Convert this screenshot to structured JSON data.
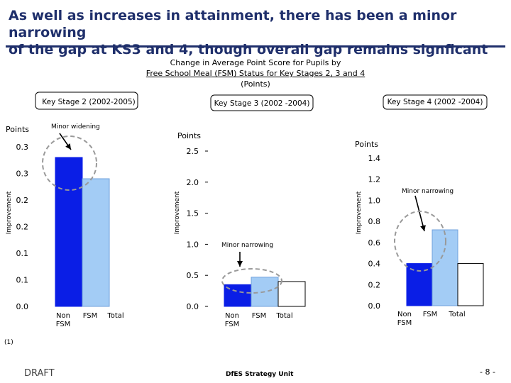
{
  "slide": {
    "title_line1": "As well as increases in attainment, there has been a minor narrowing",
    "title_line2": "of the gap at KS3 and 4, though overall gap remains signficant",
    "subtitle_line1": "Change in Average Point Score for Pupils by",
    "subtitle_line2": "Free School Meal (FSM) Status for Key Stages 2, 3 and 4",
    "subtitle_line3": "(Points)",
    "footnote": "(1)",
    "draft": "DRAFT",
    "unit": "DfES Strategy Unit",
    "page": "- 8 -"
  },
  "colors": {
    "non_fsm": "#0a1ee6",
    "fsm": "#a3ccf5",
    "total": "#ffffff",
    "ellipse": "#999999"
  },
  "chart_data": [
    {
      "type": "bar",
      "title": "Key Stage 2 (2002-2005)",
      "unit_label": "Points",
      "ylabel": "Improvement",
      "categories": [
        "Non FSM",
        "FSM",
        "Total"
      ],
      "values": [
        0.28,
        0.24,
        null
      ],
      "yticks": [
        "0.3",
        "0.3",
        "0.2",
        "0.2",
        "0.1",
        "0.1",
        "0.0"
      ],
      "ylim": [
        0,
        0.3
      ],
      "annotation": "Minor widening"
    },
    {
      "type": "bar",
      "title": "Key Stage 3 (2002 -2004)",
      "unit_label": "Points",
      "ylabel": "Improvement",
      "categories": [
        "Non FSM",
        "FSM",
        "Total"
      ],
      "values": [
        0.35,
        0.47,
        0.4
      ],
      "yticks": [
        "2.5",
        "2.0",
        "1.5",
        "1.0",
        "0.5",
        "0.0"
      ],
      "ylim": [
        0,
        2.5
      ],
      "annotation": "Minor narrowing"
    },
    {
      "type": "bar",
      "title": "Key Stage 4 (2002 -2004)",
      "unit_label": "Points",
      "ylabel": "Improvement",
      "categories": [
        "Non FSM",
        "FSM",
        "Total"
      ],
      "values": [
        0.4,
        0.72,
        0.4
      ],
      "yticks": [
        "1.4",
        "1.2",
        "1.0",
        "0.8",
        "0.6",
        "0.4",
        "0.2",
        "0.0"
      ],
      "ylim": [
        0,
        1.4
      ],
      "annotation": "Minor narrowing"
    }
  ]
}
